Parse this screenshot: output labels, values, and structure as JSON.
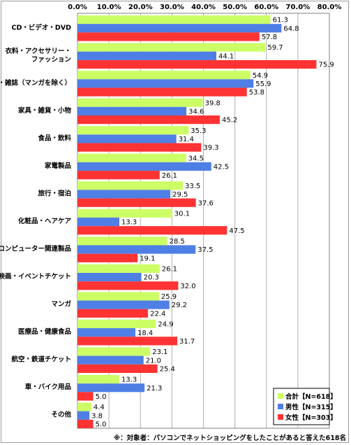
{
  "chart_data": {
    "type": "bar",
    "orientation": "horizontal",
    "categories": [
      "CD・ビデオ・DVD",
      "衣料・アクセサリー・\nファッション",
      "書籍・雑誌（マンガを除く）",
      "家具・雑貨・小物",
      "食品・飲料",
      "家電製品",
      "旅行・宿泊",
      "化粧品・ヘアケア",
      "コンピューター関連製品",
      "映画・イベントチケット",
      "マンガ",
      "医療品・健康食品",
      "航空・鉄道チケット",
      "車・バイク用品",
      "その他"
    ],
    "series": [
      {
        "name": "合計【N=618】",
        "color": "#ccff66",
        "values": [
          61.3,
          59.7,
          54.9,
          39.8,
          35.3,
          34.5,
          33.5,
          30.1,
          28.5,
          26.1,
          25.9,
          24.9,
          23.1,
          13.3,
          4.4
        ]
      },
      {
        "name": "男性【N=315】",
        "color": "#4f7fe5",
        "values": [
          64.8,
          44.1,
          55.9,
          34.6,
          31.4,
          42.5,
          29.5,
          13.3,
          37.5,
          20.3,
          29.2,
          18.4,
          21.0,
          21.3,
          3.8
        ]
      },
      {
        "name": "女性【N=303】",
        "color": "#ff3333",
        "values": [
          57.8,
          75.9,
          53.8,
          45.2,
          39.3,
          26.1,
          37.6,
          47.5,
          19.1,
          32.0,
          22.4,
          31.7,
          25.4,
          5.0,
          5.0
        ]
      }
    ],
    "xlim": [
      0,
      80
    ],
    "xticks": [
      "0.0%",
      "10.0%",
      "20.0%",
      "30.0%",
      "40.0%",
      "50.0%",
      "60.0%",
      "70.0%",
      "80.0%"
    ],
    "grid": true,
    "legend_position": "bottom-right"
  },
  "footnote": "※：対象者：パソコンでネットショッピングをしたことがあると答えた618名"
}
